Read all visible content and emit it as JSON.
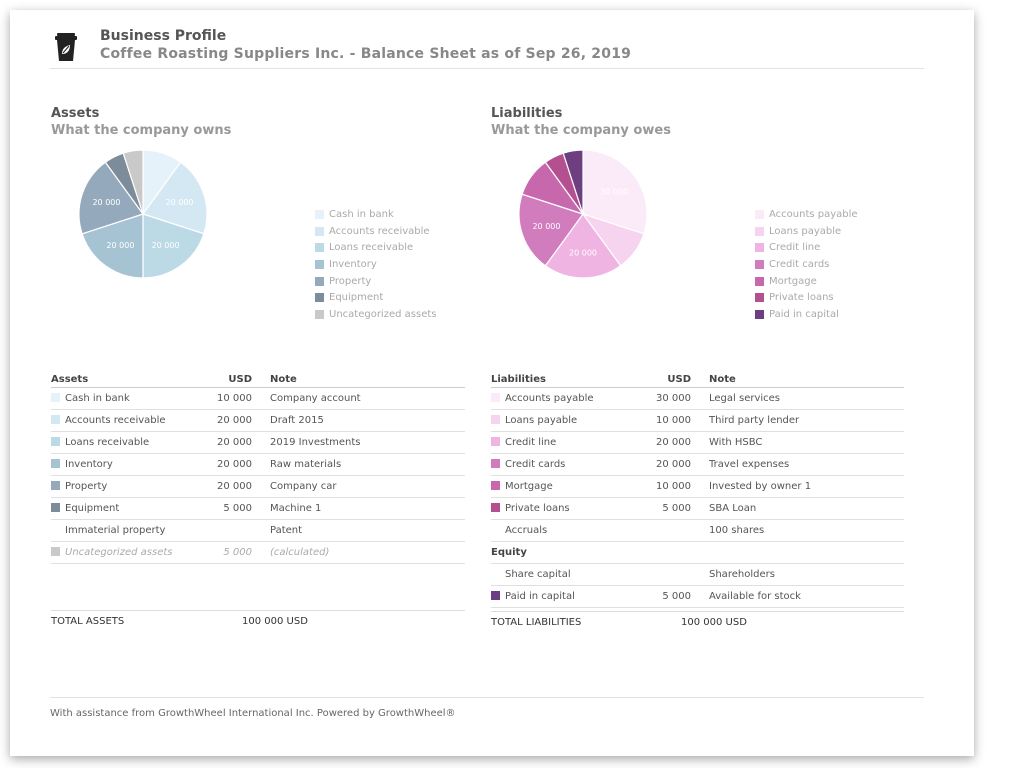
{
  "header": {
    "title": "Business Profile",
    "subtitle": "Coffee Roasting Suppliers Inc. - Balance Sheet as of Sep 26, 2019",
    "logo_icon": "coffee-cup-icon"
  },
  "assets": {
    "title": "Assets",
    "subtitle": "What the company owns",
    "chart_data": {
      "type": "pie",
      "categories": [
        "Cash in bank",
        "Accounts receivable",
        "Loans receivable",
        "Inventory",
        "Property",
        "Equipment",
        "Uncategorized assets"
      ],
      "values": [
        10000,
        20000,
        20000,
        20000,
        20000,
        5000,
        5000
      ],
      "data_labels": [
        "",
        "20 000",
        "20 000",
        "20 000",
        "20 000",
        "",
        ""
      ],
      "colors": [
        "#e6f2f9",
        "#d3e8f3",
        "#bcd9e6",
        "#a6c3d3",
        "#94aabc",
        "#7d8c9b",
        "#c9c9c9"
      ],
      "legend_position": "right"
    },
    "table": {
      "headers": [
        "Assets",
        "USD",
        "Note"
      ],
      "rows": [
        {
          "name": "Cash in bank",
          "usd": "10 000",
          "note": "Company account",
          "color": "#e6f2f9"
        },
        {
          "name": "Accounts receivable",
          "usd": "20 000",
          "note": "Draft 2015",
          "color": "#d3e8f3"
        },
        {
          "name": "Loans receivable",
          "usd": "20 000",
          "note": "2019 Investments",
          "color": "#bcd9e6"
        },
        {
          "name": "Inventory",
          "usd": "20 000",
          "note": "Raw materials",
          "color": "#a6c3d3"
        },
        {
          "name": "Property",
          "usd": "20 000",
          "note": "Company car",
          "color": "#94aabc"
        },
        {
          "name": "Equipment",
          "usd": "5 000",
          "note": "Machine 1",
          "color": "#7d8c9b"
        },
        {
          "name": "Immaterial property",
          "usd": "",
          "note": "Patent",
          "color": ""
        },
        {
          "name": "Uncategorized assets",
          "usd": "5 000",
          "note": "(calculated)",
          "color": "#c9c9c9",
          "muted": true
        }
      ]
    },
    "total_label": "TOTAL ASSETS",
    "total_value": "100 000  USD"
  },
  "liabilities": {
    "title": "Liabilities",
    "subtitle": "What the company owes",
    "chart_data": {
      "type": "pie",
      "categories": [
        "Accounts payable",
        "Loans payable",
        "Credit line",
        "Credit cards",
        "Mortgage",
        "Private loans",
        "Paid in capital"
      ],
      "values": [
        30000,
        10000,
        20000,
        20000,
        10000,
        5000,
        5000
      ],
      "data_labels": [
        "30 000",
        "",
        "20 000",
        "20 000",
        "",
        "",
        ""
      ],
      "colors": [
        "#fbeaf8",
        "#f6d3ee",
        "#f0b4e2",
        "#d17cbd",
        "#c768ad",
        "#b4508f",
        "#6e3f80"
      ],
      "legend_position": "right"
    },
    "table": {
      "headers": [
        "Liabilities",
        "USD",
        "Note"
      ],
      "rows": [
        {
          "name": "Accounts payable",
          "usd": "30 000",
          "note": "Legal services",
          "color": "#fbeaf8"
        },
        {
          "name": "Loans payable",
          "usd": "10 000",
          "note": "Third party lender",
          "color": "#f6d3ee"
        },
        {
          "name": "Credit line",
          "usd": "20 000",
          "note": "With HSBC",
          "color": "#f0b4e2"
        },
        {
          "name": "Credit cards",
          "usd": "20 000",
          "note": "Travel expenses",
          "color": "#d17cbd"
        },
        {
          "name": "Mortgage",
          "usd": "10 000",
          "note": "Invested by owner 1",
          "color": "#c768ad"
        },
        {
          "name": "Private loans",
          "usd": "5 000",
          "note": "SBA Loan",
          "color": "#b4508f"
        },
        {
          "name": "Accruals",
          "usd": "",
          "note": "100 shares",
          "color": ""
        },
        {
          "name": "Equity",
          "subheader": true
        },
        {
          "name": "Share capital",
          "usd": "",
          "note": "Shareholders",
          "color": ""
        },
        {
          "name": "Paid in capital",
          "usd": "5 000",
          "note": "Available for stock",
          "color": "#6e3f80"
        }
      ]
    },
    "total_label": "TOTAL LIABILITIES",
    "total_value": "100 000  USD"
  },
  "footer": {
    "text": "With assistance from GrowthWheel International Inc. Powered by GrowthWheel®"
  }
}
